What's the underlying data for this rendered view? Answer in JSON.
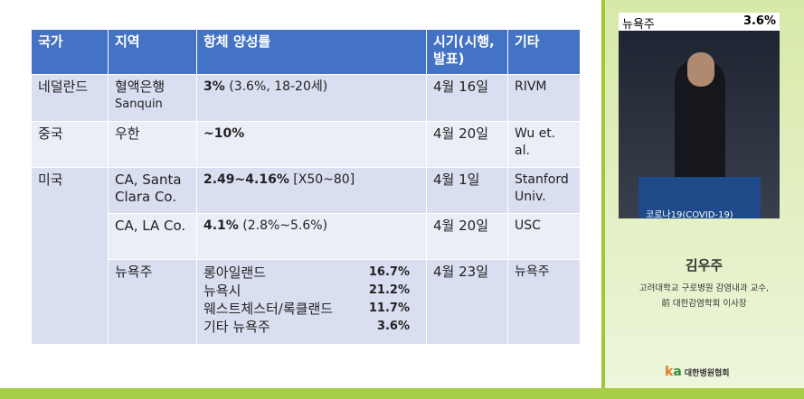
{
  "slide": {
    "table": {
      "headers": [
        "국가",
        "지역",
        "항체 양성률",
        "시기(시행, 발표)",
        "기타"
      ],
      "rows": [
        {
          "country": "네덜란드",
          "region": [
            "혈액은행",
            "Sanquin"
          ],
          "rate_bold": "3%",
          "rate_rest": "(3.6%, 18-20세)",
          "date": "4월 16일",
          "other": "RIVM"
        },
        {
          "country": "중국",
          "region": [
            "우한"
          ],
          "rate_bold": "~10%",
          "date": "4월 20일",
          "other": "Wu et. al."
        },
        {
          "country": "미국",
          "region": [
            "CA, Santa Clara Co."
          ],
          "rate_bold": "2.49~4.16%",
          "rate_rest": "[X50~80]",
          "date": "4월 1일",
          "other": "Stanford Univ."
        },
        {
          "region": [
            "CA, LA Co."
          ],
          "rate_bold": "4.1%",
          "rate_rest": "(2.8%~5.6%)",
          "date": "4월 20일",
          "other": "USC"
        },
        {
          "region": [
            "뉴욕주"
          ],
          "breakdown": [
            {
              "name": "롱아일랜드",
              "value": "16.7%"
            },
            {
              "name": "뉴욕시",
              "value": "21.2%"
            },
            {
              "name": "웨스트체스터/록클랜드",
              "value": "11.7%"
            },
            {
              "name": "기타 뉴욕주",
              "value": "3.6%"
            }
          ],
          "date": "4월 23일",
          "other": "뉴욕주"
        }
      ]
    }
  },
  "video": {
    "slide_fragment": [
      "뉴욕주",
      "3.6%"
    ],
    "banner": "코로나19(COVID-19)"
  },
  "speaker": {
    "name": "김우주",
    "affiliation": [
      "고려대학교 구로병원 감염내과 교수,",
      "前 대한감염학회 이사장"
    ]
  },
  "logo": "대한병원협회"
}
